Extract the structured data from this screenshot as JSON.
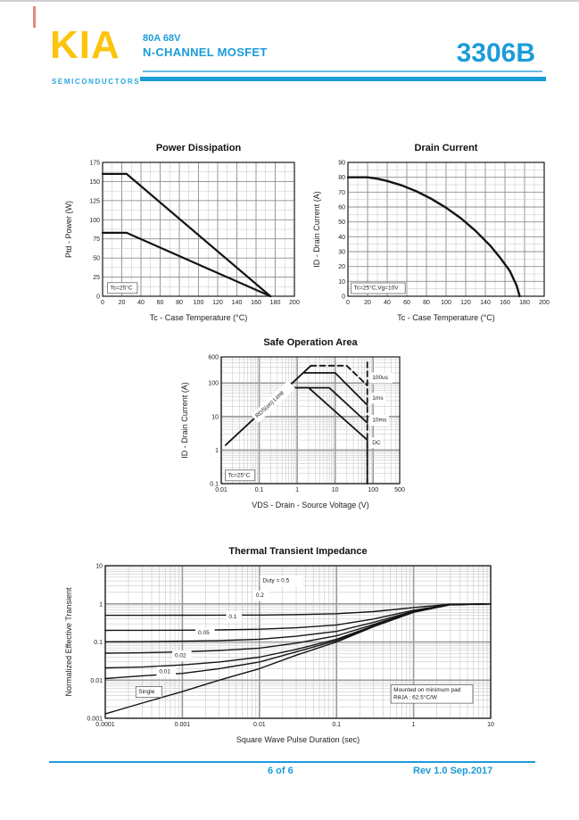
{
  "header": {
    "logo": "KIA",
    "logo_sub": "SEMICONDUCTORS",
    "spec_line1": "80A 68V",
    "spec_line2": "N-CHANNEL MOSFET",
    "part_number": "3306B",
    "brand_yellow": "#FCC40D",
    "brand_blue": "#1B9CD8"
  },
  "footer": {
    "page": "6 of 6",
    "revision": "Rev 1.0 Sep.2017"
  },
  "chart_data": [
    {
      "type": "line",
      "title": "Power Dissipation",
      "xlabel": "Tc - Case Temperature (°C)",
      "ylabel": "Ptd - Power (W)",
      "xscale": "linear",
      "yscale": "linear",
      "xlim": [
        0,
        200
      ],
      "ylim": [
        0,
        175
      ],
      "xminor": 10,
      "yminor": 12.5,
      "xticks": [
        [
          0,
          "0"
        ],
        [
          20,
          "20"
        ],
        [
          40,
          "40"
        ],
        [
          60,
          "60"
        ],
        [
          80,
          "80"
        ],
        [
          100,
          "100"
        ],
        [
          120,
          "120"
        ],
        [
          140,
          "140"
        ],
        [
          160,
          "160"
        ],
        [
          180,
          "180"
        ],
        [
          200,
          "200"
        ]
      ],
      "yticks": [
        [
          0,
          "0"
        ],
        [
          25,
          "25"
        ],
        [
          50,
          "50"
        ],
        [
          75,
          "75"
        ],
        [
          100,
          "100"
        ],
        [
          125,
          "125"
        ],
        [
          150,
          "150"
        ],
        [
          175,
          "175"
        ]
      ],
      "series": [
        {
          "name": "upper power derating",
          "points": [
            [
              0,
              160
            ],
            [
              25,
              160
            ],
            [
              175,
              0
            ]
          ]
        },
        {
          "name": "lower power derating",
          "points": [
            [
              0,
              83
            ],
            [
              25,
              83
            ],
            [
              175,
              0
            ]
          ]
        }
      ],
      "annotations": [
        {
          "text": "Tc=25°C",
          "x": 8,
          "y": 9,
          "box": true
        }
      ]
    },
    {
      "type": "line",
      "title": "Drain Current",
      "xlabel": "Tc - Case Temperature (°C)",
      "ylabel": "ID - Drain Current (A)",
      "xscale": "linear",
      "yscale": "linear",
      "xlim": [
        0,
        200
      ],
      "ylim": [
        0,
        90
      ],
      "xminor": 10,
      "yminor": 5,
      "xticks": [
        [
          0,
          "0"
        ],
        [
          20,
          "20"
        ],
        [
          40,
          "40"
        ],
        [
          60,
          "60"
        ],
        [
          80,
          "80"
        ],
        [
          100,
          "100"
        ],
        [
          120,
          "120"
        ],
        [
          140,
          "140"
        ],
        [
          160,
          "160"
        ],
        [
          180,
          "180"
        ],
        [
          200,
          "200"
        ]
      ],
      "yticks": [
        [
          0,
          "0"
        ],
        [
          10,
          "10"
        ],
        [
          20,
          "20"
        ],
        [
          30,
          "30"
        ],
        [
          40,
          "40"
        ],
        [
          50,
          "50"
        ],
        [
          60,
          "60"
        ],
        [
          70,
          "70"
        ],
        [
          80,
          "80"
        ],
        [
          90,
          "90"
        ]
      ],
      "series": [
        {
          "name": "Id derating",
          "points": [
            [
              0,
              80
            ],
            [
              20,
              80
            ],
            [
              30,
              79
            ],
            [
              40,
              77.5
            ],
            [
              55,
              74.5
            ],
            [
              70,
              70.5
            ],
            [
              85,
              65.5
            ],
            [
              100,
              59.5
            ],
            [
              115,
              52.5
            ],
            [
              130,
              44
            ],
            [
              145,
              34
            ],
            [
              155,
              26
            ],
            [
              165,
              17
            ],
            [
              172,
              7
            ],
            [
              175,
              0
            ]
          ]
        }
      ],
      "annotations": [
        {
          "text": "Tc=25°C,Vg=10V",
          "x": 6,
          "y": 4.5,
          "box": true
        }
      ]
    },
    {
      "type": "line",
      "title": "Safe Operation Area",
      "xlabel": "VDS - Drain - Source Voltage (V)",
      "ylabel": "ID - Drain Current (A)",
      "xscale": "log",
      "yscale": "log",
      "xlim": [
        0.01,
        500
      ],
      "ylim": [
        0.1,
        600
      ],
      "xticks": [
        [
          0.01,
          "0.01"
        ],
        [
          0.1,
          "0.1"
        ],
        [
          1,
          "1"
        ],
        [
          10,
          "10"
        ],
        [
          100,
          "100"
        ],
        [
          500,
          "500"
        ]
      ],
      "yticks": [
        [
          0.1,
          "0.1"
        ],
        [
          1,
          "1"
        ],
        [
          10,
          "10"
        ],
        [
          100,
          "100"
        ],
        [
          600,
          "600"
        ]
      ],
      "series": [
        {
          "name": "RDS(on) limit",
          "points": [
            [
              0.013,
              1.4
            ],
            [
              2.3,
              330
            ]
          ]
        },
        {
          "name": "100us",
          "points": [
            [
              2.3,
              330
            ],
            [
              20,
              330
            ],
            [
              70,
              85
            ]
          ],
          "dash": true
        },
        {
          "name": "1ms",
          "points": [
            [
              1.5,
              200
            ],
            [
              10,
              200
            ],
            [
              70,
              22
            ]
          ]
        },
        {
          "name": "10ms",
          "points": [
            [
              0.55,
              72
            ],
            [
              7,
              72
            ],
            [
              70,
              6.5
            ]
          ]
        },
        {
          "name": "DC",
          "points": [
            [
              0.55,
              72
            ],
            [
              2,
              72
            ],
            [
              70,
              2
            ],
            [
              70,
              0.1
            ]
          ]
        },
        {
          "name": "breakdown voltage line",
          "points": [
            [
              70,
              0.1
            ],
            [
              70,
              450
            ]
          ],
          "dash": true
        }
      ],
      "annotations": [
        {
          "text": "Tc=25°C",
          "x": 0.015,
          "y": 0.16,
          "box": true
        },
        {
          "text": "RDS(on) Limit",
          "x": 0.09,
          "y": 9,
          "rotate": -43
        },
        {
          "text": "100us",
          "x": 95,
          "y": 130
        },
        {
          "text": "1ms",
          "x": 95,
          "y": 32
        },
        {
          "text": "10ms",
          "x": 95,
          "y": 7
        },
        {
          "text": "DC",
          "x": 95,
          "y": 1.5
        }
      ]
    },
    {
      "type": "line",
      "title": "Thermal Transient Impedance",
      "xlabel": "Square Wave Pulse Duration (sec)",
      "ylabel": "Normalized Effective Transient",
      "xscale": "log",
      "yscale": "log",
      "xlim": [
        0.0001,
        10
      ],
      "ylim": [
        0.001,
        10
      ],
      "xticks": [
        [
          0.0001,
          "0.0001"
        ],
        [
          0.001,
          "0.001"
        ],
        [
          0.01,
          "0.01"
        ],
        [
          0.1,
          "0.1"
        ],
        [
          1,
          "1"
        ],
        [
          10,
          "10"
        ]
      ],
      "yticks": [
        [
          0.001,
          "0.001"
        ],
        [
          0.01,
          "0.01"
        ],
        [
          0.1,
          "0.1"
        ],
        [
          1,
          "1"
        ],
        [
          10,
          "10"
        ]
      ],
      "x_samples": [
        0.0001,
        0.0003,
        0.001,
        0.003,
        0.01,
        0.03,
        0.1,
        0.3,
        1,
        3,
        10
      ],
      "series": [
        {
          "name": "Duty 0.5",
          "values": [
            0.5,
            0.501,
            0.503,
            0.505,
            0.51,
            0.522,
            0.55,
            0.625,
            0.8,
            0.975,
            1.0
          ]
        },
        {
          "name": "Duty 0.2",
          "values": [
            0.201,
            0.202,
            0.204,
            0.208,
            0.216,
            0.236,
            0.28,
            0.4,
            0.68,
            0.96,
            1.0
          ]
        },
        {
          "name": "Duty 0.1",
          "values": [
            0.101,
            0.102,
            0.105,
            0.109,
            0.118,
            0.141,
            0.19,
            0.325,
            0.64,
            0.955,
            1.0
          ]
        },
        {
          "name": "Duty 0.05",
          "values": [
            0.051,
            0.052,
            0.055,
            0.06,
            0.069,
            0.093,
            0.145,
            0.288,
            0.62,
            0.953,
            1.0
          ]
        },
        {
          "name": "Duty 0.02",
          "values": [
            0.021,
            0.022,
            0.025,
            0.03,
            0.04,
            0.064,
            0.118,
            0.265,
            0.61,
            0.951,
            1.0
          ]
        },
        {
          "name": "Duty 0.01",
          "values": [
            0.011,
            0.013,
            0.015,
            0.02,
            0.03,
            0.055,
            0.109,
            0.258,
            0.6,
            0.95,
            1.0
          ]
        },
        {
          "name": "Single",
          "values": [
            0.0013,
            0.0025,
            0.005,
            0.01,
            0.02,
            0.045,
            0.1,
            0.25,
            0.6,
            0.95,
            1.0
          ]
        }
      ],
      "annotations": [
        {
          "text": "Duty =  0.5",
          "x": 0.011,
          "y": 3.7
        },
        {
          "text": "0.2",
          "x": 0.009,
          "y": 1.5
        },
        {
          "text": "0.1",
          "x": 0.004,
          "y": 0.42
        },
        {
          "text": "0.05",
          "x": 0.0016,
          "y": 0.16
        },
        {
          "text": "0.02",
          "x": 0.0008,
          "y": 0.04
        },
        {
          "text": "0.01",
          "x": 0.0005,
          "y": 0.015
        },
        {
          "text": "Single",
          "x": 0.00027,
          "y": 0.0045,
          "box": true
        },
        {
          "lines": [
            "Mounted on minimum pad",
            "RθJA : 62.5°C/W"
          ],
          "x": 0.55,
          "y": 0.005,
          "box": true
        }
      ]
    }
  ]
}
